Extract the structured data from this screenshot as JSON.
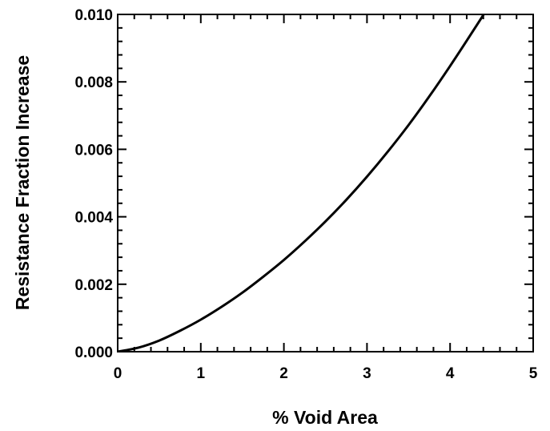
{
  "chart_data": {
    "type": "line",
    "title": "",
    "xlabel": "% Void Area",
    "ylabel": "Resistance Fraction Increase",
    "xlim": [
      0,
      5
    ],
    "ylim": [
      0,
      0.01
    ],
    "x_ticks": [
      "0",
      "1",
      "2",
      "3",
      "4",
      "5"
    ],
    "y_ticks": [
      "0.000",
      "0.002",
      "0.004",
      "0.006",
      "0.008",
      "0.010"
    ],
    "grid": false,
    "legend": "none",
    "line_color": "#000000",
    "series": [
      {
        "x": [
          0,
          0.25,
          0.5,
          0.75,
          1.0,
          1.25,
          1.5,
          1.75,
          2.0,
          2.25,
          2.5,
          2.75,
          3.0,
          3.25,
          3.5,
          3.75,
          4.0,
          4.25,
          4.5,
          4.63
        ],
        "values": [
          0.0,
          0.00012,
          0.00033,
          0.00062,
          0.00095,
          0.00133,
          0.00175,
          0.00222,
          0.00272,
          0.00327,
          0.00386,
          0.0045,
          0.00519,
          0.00593,
          0.00672,
          0.00757,
          0.00847,
          0.00941,
          0.01038,
          0.011
        ]
      }
    ]
  }
}
